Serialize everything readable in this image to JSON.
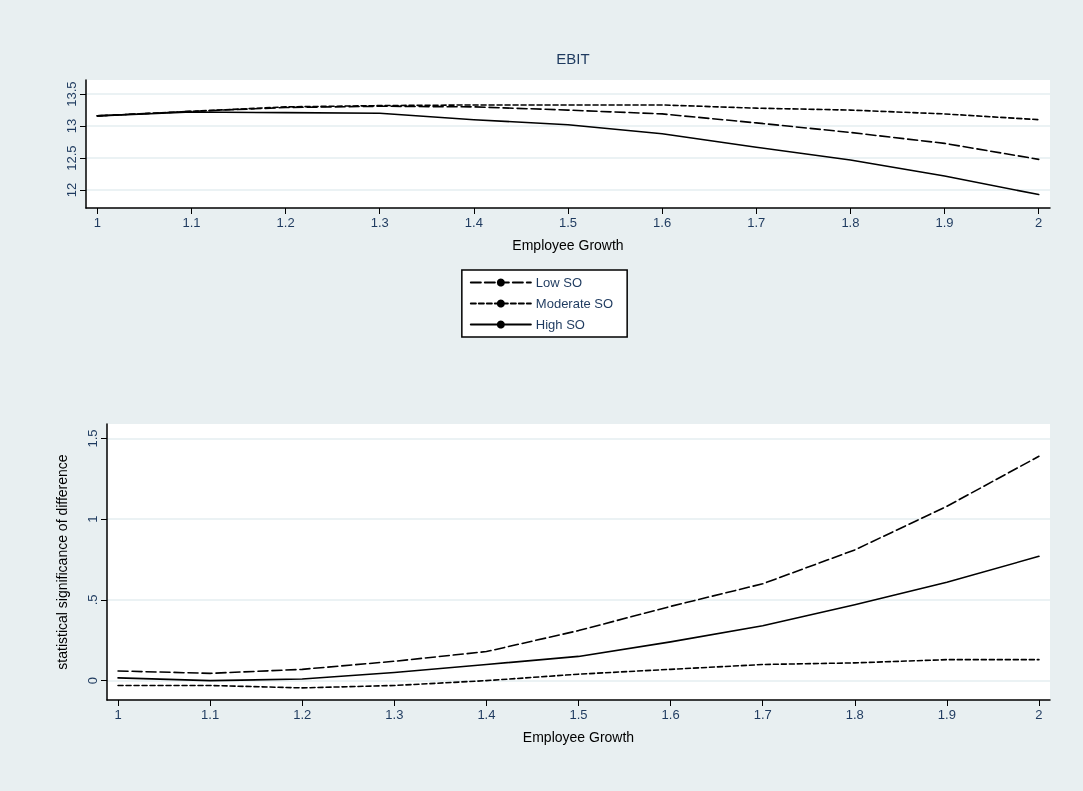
{
  "chart_data": [
    {
      "type": "line",
      "title": "EBIT",
      "xlabel": "Employee Growth",
      "x": [
        1.0,
        1.1,
        1.2,
        1.3,
        1.4,
        1.5,
        1.6,
        1.7,
        1.8,
        1.9,
        2.0
      ],
      "series": [
        {
          "name": "Low SO",
          "color": "#000000",
          "line_style": "dashed",
          "values": [
            13.16,
            13.23,
            13.29,
            13.31,
            13.3,
            13.25,
            13.19,
            13.05,
            12.9,
            12.73,
            12.48
          ]
        },
        {
          "name": "Moderate SO",
          "color": "#000000",
          "line_style": "dashed",
          "values": [
            13.16,
            13.23,
            13.3,
            13.32,
            13.33,
            13.33,
            13.33,
            13.28,
            13.25,
            13.19,
            13.1
          ]
        },
        {
          "name": "High SO",
          "color": "#000000",
          "line_style": "solid",
          "values": [
            13.16,
            13.22,
            13.21,
            13.2,
            13.1,
            13.02,
            12.88,
            12.67,
            12.47,
            12.22,
            11.93
          ]
        }
      ],
      "xlim": [
        0.988,
        2.012
      ],
      "xticks": [
        1,
        1.1,
        1.2,
        1.3,
        1.4,
        1.5,
        1.6,
        1.7,
        1.8,
        1.9,
        2
      ],
      "ylim": [
        11.72,
        13.72
      ],
      "yticks": [
        12,
        12.5,
        13,
        13.5
      ],
      "grid": "y",
      "legend": "bottom",
      "marker": "none"
    },
    {
      "type": "line",
      "xlabel": "Employee Growth",
      "ylabel": "statistical significance of difference",
      "x": [
        1.0,
        1.1,
        1.2,
        1.3,
        1.4,
        1.5,
        1.6,
        1.7,
        1.8,
        1.9,
        2.0
      ],
      "series": [
        {
          "color": "#000000",
          "line_style": "dashed",
          "values": [
            0.06,
            0.045,
            0.07,
            0.12,
            0.18,
            0.31,
            0.46,
            0.6,
            0.81,
            1.08,
            1.39
          ]
        },
        {
          "color": "#000000",
          "line_style": "solid",
          "values": [
            0.017,
            0.0,
            0.01,
            0.05,
            0.1,
            0.15,
            0.24,
            0.34,
            0.47,
            0.61,
            0.77
          ]
        },
        {
          "color": "#000000",
          "line_style": "dashed",
          "values": [
            -0.03,
            -0.03,
            -0.045,
            -0.03,
            0.0,
            0.04,
            0.07,
            0.1,
            0.11,
            0.13,
            0.13
          ]
        }
      ],
      "xlim": [
        0.988,
        2.012
      ],
      "xticks": [
        1,
        1.1,
        1.2,
        1.3,
        1.4,
        1.5,
        1.6,
        1.7,
        1.8,
        1.9,
        2
      ],
      "ylim": [
        -0.12,
        1.59
      ],
      "yticks": [
        0,
        {
          "value": 0.5,
          "label": ".5"
        },
        1,
        1.5
      ],
      "grid": "y",
      "legend": false,
      "marker": "none"
    }
  ]
}
